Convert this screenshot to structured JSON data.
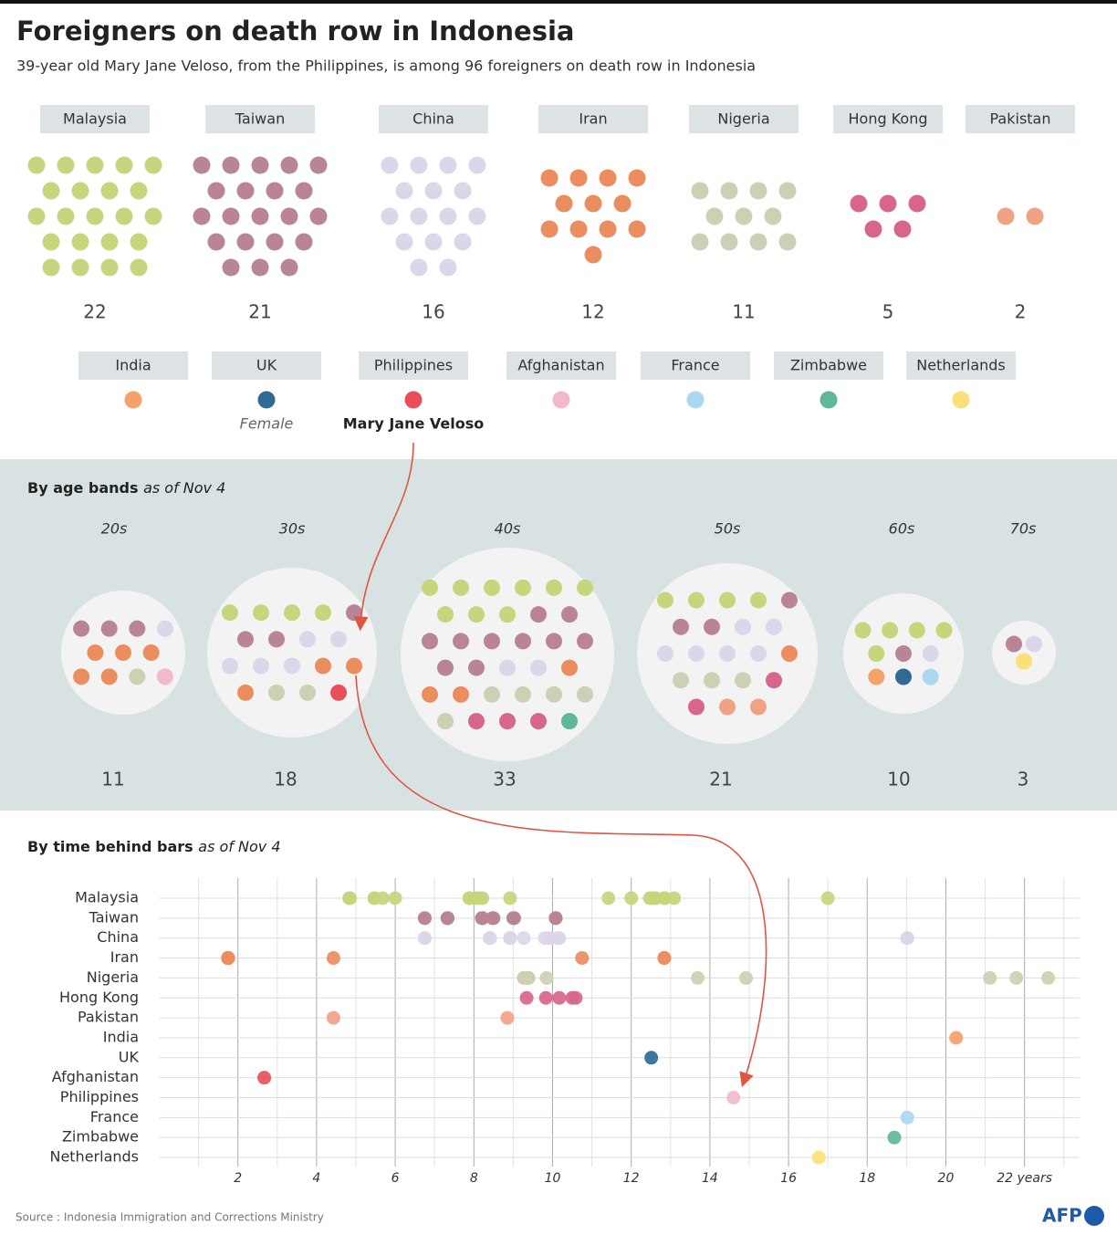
{
  "title": "Foreigners on death row in Indonesia",
  "subtitle": "39-year old Mary Jane Veloso, from the Philippines, is among 96 foreigners on death row in Indonesia",
  "source": "Source : Indonesia Immigration and Corrections Ministry",
  "credit": "AFP",
  "chart_data": [
    {
      "type": "dot-count",
      "categories": [
        "Malaysia",
        "Taiwan",
        "China",
        "Iran",
        "Nigeria",
        "Hong Kong",
        "Pakistan",
        "India",
        "UK",
        "Philippines",
        "Afghanistan",
        "France",
        "Zimbabwe",
        "Netherlands"
      ],
      "values": [
        22,
        21,
        16,
        12,
        11,
        5,
        2,
        1,
        1,
        1,
        1,
        1,
        1,
        1
      ],
      "colors": [
        "#c5d67c",
        "#b98595",
        "#dcd6ea",
        "#ec8d5f",
        "#cdd0b2",
        "#d8658c",
        "#f0a285",
        "#f5a26a",
        "#2e6a94",
        "#e94f5a",
        "#f2b8cc",
        "#abd7ef",
        "#5db89b",
        "#fbe07a"
      ],
      "annotations": [
        null,
        null,
        null,
        null,
        null,
        null,
        null,
        null,
        "Female",
        "Mary Jane Veloso",
        null,
        null,
        null,
        null
      ]
    },
    {
      "type": "bubble-group",
      "title": "By age bands",
      "title_note": "as of Nov 4",
      "categories": [
        "20s",
        "30s",
        "40s",
        "50s",
        "60s",
        "70s"
      ],
      "values": [
        11,
        18,
        33,
        21,
        10,
        3
      ],
      "breakdown": [
        [
          0,
          3,
          1,
          5,
          1,
          0,
          0,
          0,
          0,
          0,
          1,
          0,
          0,
          0
        ],
        [
          4,
          3,
          5,
          3,
          2,
          0,
          0,
          0,
          0,
          1,
          0,
          0,
          0,
          0
        ],
        [
          9,
          10,
          2,
          3,
          5,
          3,
          0,
          0,
          0,
          0,
          0,
          0,
          1,
          0
        ],
        [
          4,
          3,
          6,
          1,
          3,
          2,
          2,
          0,
          0,
          0,
          0,
          0,
          0,
          0
        ],
        [
          5,
          1,
          1,
          0,
          0,
          0,
          0,
          1,
          1,
          0,
          0,
          1,
          0,
          0
        ],
        [
          0,
          1,
          1,
          0,
          0,
          0,
          0,
          0,
          0,
          0,
          0,
          0,
          0,
          1
        ]
      ]
    },
    {
      "type": "scatter",
      "title": "By time behind bars",
      "title_note": "as of Nov 4",
      "xlim": [
        0,
        23.4
      ],
      "xticks": [
        2,
        4,
        6,
        8,
        10,
        12,
        14,
        16,
        18,
        20,
        {
          "value": 22,
          "label": "22 years"
        }
      ],
      "minor_xticks": [
        1,
        3,
        5,
        7,
        9,
        11,
        13,
        15,
        17,
        19,
        21,
        23
      ],
      "series": [
        {
          "name": "Malaysia",
          "values": [
            4.83,
            4.85,
            5.47,
            5.47,
            5.68,
            6.0,
            7.88,
            7.9,
            8.06,
            8.16,
            8.22,
            8.92,
            11.42,
            12.0,
            12.47,
            12.53,
            12.58,
            12.62,
            12.84,
            12.86,
            13.09,
            17.0
          ]
        },
        {
          "name": "Taiwan",
          "values": [
            6.75,
            6.75,
            7.33,
            7.33,
            7.33,
            7.33,
            8.2,
            8.22,
            8.22,
            8.22,
            8.48,
            8.48,
            8.48,
            8.5,
            9.0,
            9.02,
            9.02,
            9.02,
            10.08,
            10.08,
            10.08
          ]
        },
        {
          "name": "China",
          "values": [
            6.75,
            6.75,
            8.4,
            8.41,
            8.41,
            8.92,
            8.92,
            8.92,
            9.27,
            9.8,
            9.92,
            10.13,
            10.17,
            19.02,
            19.02,
            19.02
          ]
        },
        {
          "name": "Iran",
          "values": [
            1.75,
            1.75,
            1.75,
            1.75,
            1.75,
            1.75,
            1.75,
            1.75,
            4.43,
            10.75,
            12.84,
            12.84
          ]
        },
        {
          "name": "Nigeria",
          "values": [
            9.27,
            9.27,
            9.34,
            9.39,
            9.39,
            9.85,
            13.69,
            14.92,
            21.12,
            21.79,
            22.6
          ]
        },
        {
          "name": "Hong Kong",
          "values": [
            9.34,
            9.83,
            10.17,
            10.5,
            10.59
          ]
        },
        {
          "name": "Pakistan",
          "values": [
            4.43,
            8.85
          ]
        },
        {
          "name": "India",
          "values": [
            20.26
          ]
        },
        {
          "name": "UK",
          "values": [
            12.51
          ]
        },
        {
          "name": "Afghanistan",
          "values": [
            2.67
          ]
        },
        {
          "name": "Philippines",
          "values": [
            14.6
          ]
        },
        {
          "name": "France",
          "values": [
            19.02
          ]
        },
        {
          "name": "Zimbabwe",
          "values": [
            18.69
          ]
        },
        {
          "name": "Netherlands",
          "values": [
            16.77
          ]
        }
      ]
    }
  ]
}
